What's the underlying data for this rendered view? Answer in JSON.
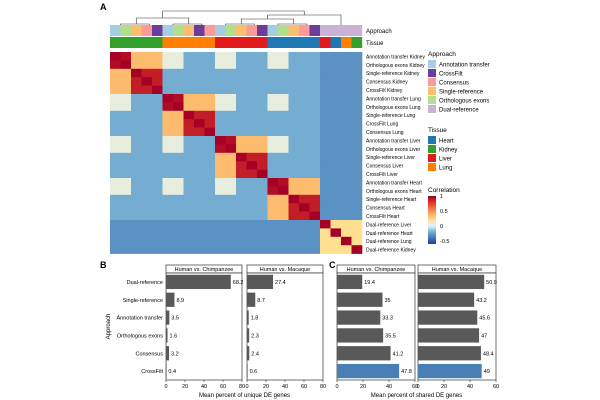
{
  "figure": {
    "panel_labels": [
      "A",
      "B",
      "C"
    ]
  },
  "chart_data": [
    {
      "type": "heatmap",
      "panel": "A",
      "row_labels": [
        "Annotation transfer Kidney",
        "Orthologous exons Kidney",
        "Single-reference Kidney",
        "Consensus Kidney",
        "CrossFilt Kidney",
        "Annotation transfer Lung",
        "Orthologous exons Lung",
        "Single-reference Lung",
        "CrossFilt Lung",
        "Consensus Lung",
        "Annotation transfer Liver",
        "Orthologous exons Liver",
        "Single-reference Liver",
        "Consensus Liver",
        "CrossFilt Liver",
        "Annotation transfer Heart",
        "Orthologous exons Heart",
        "Single-reference Heart",
        "Consensus Heart",
        "CrossFilt Heart",
        "Dual-reference Liver",
        "Dual-reference Heart",
        "Dual-reference Lung",
        "Dual-reference Kidney"
      ],
      "row_approach": [
        "Annotation transfer",
        "Orthologous exons",
        "Single-reference",
        "Consensus",
        "CrossFilt",
        "Annotation transfer",
        "Orthologous exons",
        "Single-reference",
        "CrossFilt",
        "Consensus",
        "Annotation transfer",
        "Orthologous exons",
        "Single-reference",
        "Consensus",
        "CrossFilt",
        "Annotation transfer",
        "Orthologous exons",
        "Single-reference",
        "Consensus",
        "CrossFilt",
        "Dual-reference",
        "Dual-reference",
        "Dual-reference",
        "Dual-reference"
      ],
      "row_tissue": [
        "Kidney",
        "Kidney",
        "Kidney",
        "Kidney",
        "Kidney",
        "Lung",
        "Lung",
        "Lung",
        "Lung",
        "Lung",
        "Liver",
        "Liver",
        "Liver",
        "Liver",
        "Liver",
        "Heart",
        "Heart",
        "Heart",
        "Heart",
        "Heart",
        "Liver",
        "Heart",
        "Lung",
        "Kidney"
      ],
      "correlation_estimate": {
        "same_tissue_same_approach": 1.0,
        "same_tissue_method_group": 0.88,
        "same_tissue_annotation_group": 0.95,
        "same_tissue_cross_group": 0.35,
        "annotation_across_tissue": 0.05,
        "method_across_tissue": -0.2,
        "dual_vs_others": -0.3,
        "dual_across_tissue": 0.2
      },
      "annotation_rows": [
        "Approach",
        "Tissue"
      ],
      "legends": {
        "approach": {
          "title": "Approach",
          "items": [
            {
              "label": "Annotation transfer",
              "color": "#a6cee3"
            },
            {
              "label": "CrossFilt",
              "color": "#6a3d9a"
            },
            {
              "label": "Consensus",
              "color": "#fb9a99"
            },
            {
              "label": "Single-reference",
              "color": "#fdbf6f"
            },
            {
              "label": "Orthologous exons",
              "color": "#b2df8a"
            },
            {
              "label": "Dual-reference",
              "color": "#cab2d6"
            }
          ]
        },
        "tissue": {
          "title": "Tissue",
          "items": [
            {
              "label": "Heart",
              "color": "#1f78b4"
            },
            {
              "label": "Kidney",
              "color": "#33a02c"
            },
            {
              "label": "Liver",
              "color": "#e31a1c"
            },
            {
              "label": "Lung",
              "color": "#ff7f00"
            }
          ]
        },
        "correlation": {
          "title": "Correlation",
          "ticks": [
            "1",
            "0.5",
            "0",
            "-0.5"
          ],
          "range": [
            -0.6,
            1.0
          ],
          "colors": [
            "#313695",
            "#4575b4",
            "#74add1",
            "#e0f3f8",
            "#fee090",
            "#fdae61",
            "#f46d43",
            "#d73027",
            "#a50026"
          ]
        }
      }
    },
    {
      "type": "bar",
      "orientation": "horizontal",
      "panel": "B",
      "categories": [
        "Dual-reference",
        "Single-reference",
        "Annotation transfer",
        "Orthologous exons",
        "Consensus",
        "CrossFilt"
      ],
      "facets": [
        {
          "name": "Human vs. Chimpanzee",
          "values": [
            68.2,
            8.9,
            3.5,
            1.6,
            3.2,
            0.4
          ],
          "value_labels": [
            "68.2",
            "8.9",
            "3.5",
            "1.6",
            "3.2",
            "0.4"
          ]
        },
        {
          "name": "Human vs. Macaque",
          "values": [
            27.4,
            8.7,
            1.8,
            2.3,
            2.4,
            0.6
          ],
          "value_labels": [
            "27.4",
            "8.7",
            "1.8",
            "2.3",
            "2.4",
            "0.6"
          ]
        }
      ],
      "xlim": [
        0,
        80
      ],
      "xticks": [
        0,
        20,
        40,
        60,
        80
      ],
      "xtick_labels": [
        "0",
        "20",
        "40",
        "60",
        "80"
      ],
      "xlabel": "Mean percent of unique DE genes",
      "ylabel": "Approach",
      "bar_color": "#595959"
    },
    {
      "type": "bar",
      "orientation": "horizontal",
      "panel": "C",
      "categories": [
        "Dual-reference",
        "Single-reference",
        "Annotation transfer",
        "Orthologous exons",
        "Consensus",
        "CrossFilt"
      ],
      "facets": [
        {
          "name": "Human vs. Chimpanzee",
          "values": [
            19.4,
            35,
            33.3,
            35.5,
            41.2,
            47.8
          ],
          "value_labels": [
            "19.4",
            "35",
            "33.3",
            "35.5",
            "41.2",
            "47.8"
          ]
        },
        {
          "name": "Human vs. Macaque",
          "values": [
            50.9,
            43.2,
            45.6,
            47,
            48.4,
            49
          ],
          "value_labels": [
            "50.9",
            "43.2",
            "45.6",
            "47",
            "48.4",
            "49"
          ]
        }
      ],
      "highlight_category": "CrossFilt",
      "highlight_color": "#4a7fb5",
      "xlim": [
        0,
        60
      ],
      "xticks": [
        0,
        20,
        40,
        60
      ],
      "xtick_labels": [
        "0",
        "20",
        "40",
        "60"
      ],
      "xlabel": "Mean percent of shared DE genes",
      "bar_color": "#595959"
    }
  ]
}
